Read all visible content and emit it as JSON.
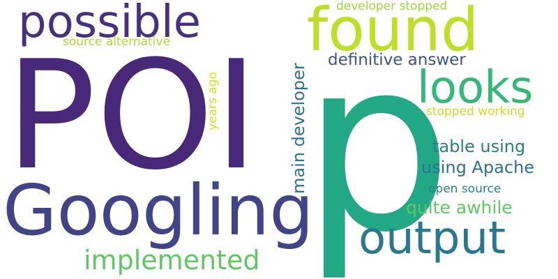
{
  "words": {
    "p": {
      "text": "p",
      "color": "#22a884"
    },
    "poi": {
      "text": "POI",
      "color": "#482878"
    },
    "googling": {
      "text": "Googling",
      "color": "#414487"
    },
    "found": {
      "text": "found",
      "color": "#bddf26"
    },
    "possible": {
      "text": "possible",
      "color": "#46327e"
    },
    "looks": {
      "text": "looks",
      "color": "#35b779"
    },
    "output": {
      "text": "output",
      "color": "#2a788e"
    },
    "implemented": {
      "text": "implemented",
      "color": "#5ec962"
    },
    "quite": {
      "text": "quite awhile",
      "color": "#5ec962"
    },
    "using": {
      "text": "using Apache",
      "color": "#2c728e"
    },
    "table": {
      "text": "table using",
      "color": "#287c8e"
    },
    "definitive": {
      "text": "definitive answer",
      "color": "#3b528b"
    },
    "main": {
      "text": "main developer",
      "color": "#2c728e"
    },
    "stopped": {
      "text": "stopped working",
      "color": "#c8e020"
    },
    "developer": {
      "text": "developer stopped",
      "color": "#9bd93c"
    },
    "source": {
      "text": "source alternative",
      "color": "#addc30"
    },
    "open": {
      "text": "open source",
      "color": "#26828e"
    },
    "years": {
      "text": "years ago",
      "color": "#d2e21b"
    }
  }
}
